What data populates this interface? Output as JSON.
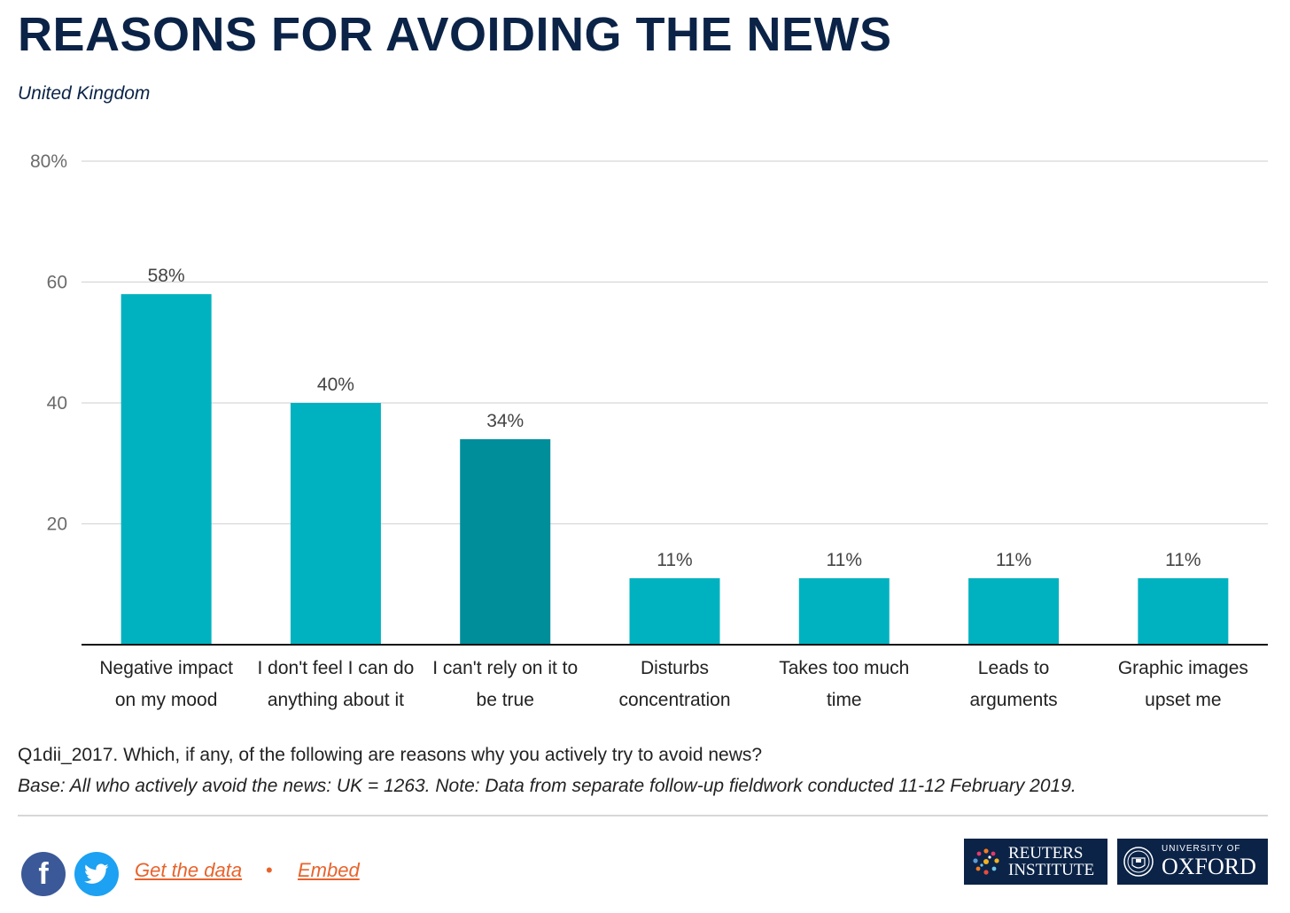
{
  "header": {
    "title": "REASONS FOR AVOIDING THE NEWS",
    "subtitle": "United Kingdom"
  },
  "chart_data": {
    "type": "bar",
    "title": "REASONS FOR AVOIDING THE NEWS",
    "subtitle": "United Kingdom",
    "categories": [
      [
        "Negative impact",
        "on my mood"
      ],
      [
        "I don't feel I can do",
        "anything about it"
      ],
      [
        "I can't rely on it to",
        "be true"
      ],
      [
        "Disturbs",
        "concentration"
      ],
      [
        "Takes too much",
        "time"
      ],
      [
        "Leads to",
        "arguments"
      ],
      [
        "Graphic images",
        "upset me"
      ]
    ],
    "values": [
      58,
      40,
      34,
      11,
      11,
      11,
      11
    ],
    "data_labels": [
      "58%",
      "40%",
      "34%",
      "11%",
      "11%",
      "11%",
      "11%"
    ],
    "highlight_index": 2,
    "ylim": [
      0,
      80
    ],
    "yticks": [
      20,
      40,
      60,
      80
    ],
    "ytick_labels": [
      "20",
      "40",
      "60",
      "80%"
    ],
    "grid": true,
    "colors": {
      "bar": "#00b2c0",
      "bar_highlight": "#008e9b",
      "axis": "#111111",
      "grid": "#d7d7d7"
    }
  },
  "footer": {
    "question": "Q1dii_2017. Which, if any, of the following are reasons why you actively try to avoid news?",
    "base_note": "Base: All who actively avoid the news: UK = 1263.  Note: Data from separate follow-up fieldwork conducted 11-12 February 2019.",
    "get_data_label": "Get the data",
    "bullet": "•",
    "embed_label": "Embed",
    "facebook_icon": "f",
    "logos": {
      "reuters_line1": "REUTERS",
      "reuters_line2": "INSTITUTE",
      "oxford_line1": "UNIVERSITY OF",
      "oxford_line2": "OXFORD"
    }
  }
}
